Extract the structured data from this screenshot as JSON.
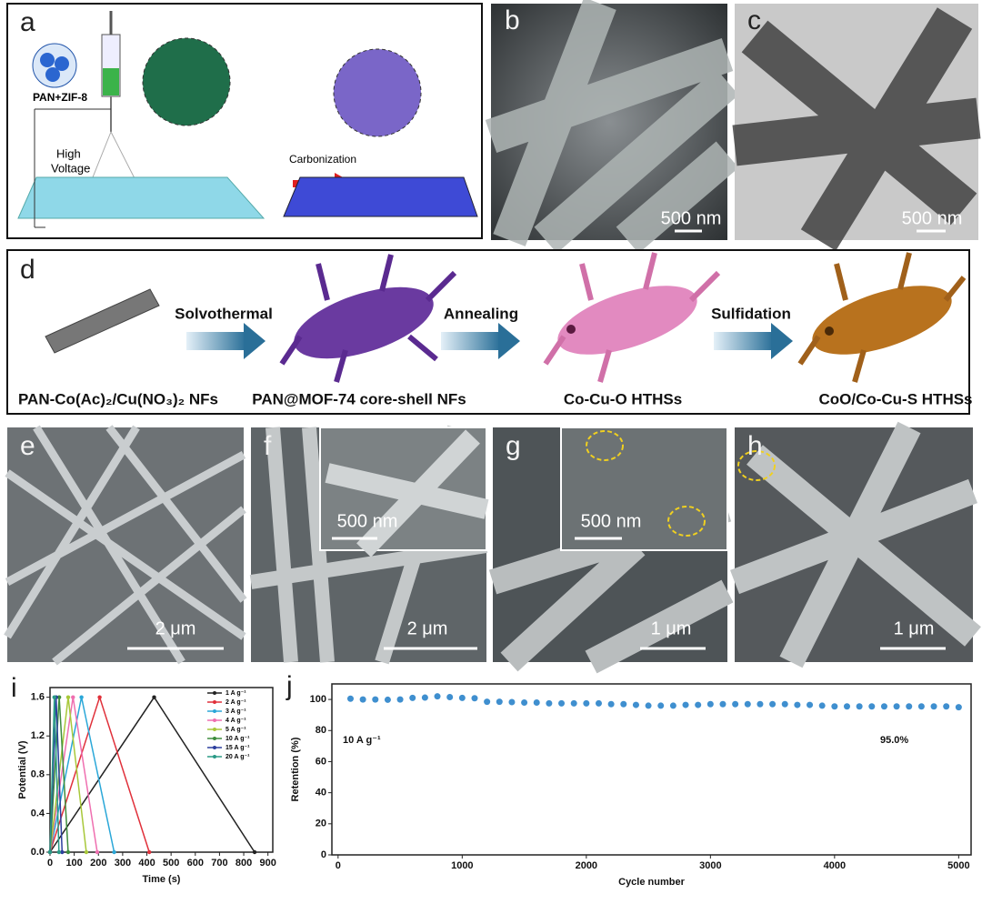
{
  "panels": {
    "a": {
      "label": "a",
      "sample": "PAN+ZIF-8",
      "voltage_lines": [
        "High",
        "Voltage"
      ],
      "step": "Carbonization"
    },
    "b": {
      "label": "b",
      "scale_bar": "500 nm"
    },
    "c": {
      "label": "c",
      "scale_bar": "500 nm"
    },
    "d": {
      "label": "d",
      "steps": [
        "Solvothermal",
        "Annealing",
        "Sulfidation"
      ],
      "products": [
        "PAN-Co(Ac)₂/Cu(NO₃)₂ NFs",
        "PAN@MOF-74 core-shell NFs",
        "Co-Cu-O HTHSs",
        "CoO/Co-Cu-S HTHSs"
      ]
    },
    "e": {
      "label": "e",
      "scale_bar": "2 μm"
    },
    "f": {
      "label": "f",
      "inset_scale_bar": "500 nm",
      "scale_bar": "2 μm"
    },
    "g": {
      "label": "g",
      "inset_scale_bar": "500 nm",
      "scale_bar": "1 μm"
    },
    "h": {
      "label": "h",
      "scale_bar": "1 μm"
    }
  },
  "chart_data": [
    {
      "type": "line",
      "label": "i",
      "x_label": "Time (s)",
      "y_label": "Potential (V)",
      "xlim": [
        0,
        920
      ],
      "xticks": [
        0,
        100,
        200,
        300,
        400,
        500,
        600,
        700,
        800,
        900
      ],
      "ylim": [
        0,
        1.7
      ],
      "yticks": [
        {
          "value": 0,
          "label": "0.0"
        },
        0.4,
        0.8,
        1.2,
        1.6
      ],
      "legend": "upper right",
      "series": [
        {
          "name": "1 A g⁻¹",
          "color": "#222222",
          "x": [
            0,
            430,
            845
          ],
          "values": [
            0,
            1.6,
            0
          ]
        },
        {
          "name": "2 A g⁻¹",
          "color": "#e0303a",
          "x": [
            0,
            205,
            410
          ],
          "values": [
            0,
            1.6,
            0
          ]
        },
        {
          "name": "3 A g⁻¹",
          "color": "#2aa7d8",
          "x": [
            0,
            130,
            265
          ],
          "values": [
            0,
            1.6,
            0
          ]
        },
        {
          "name": "4 A g⁻¹",
          "color": "#ef6fb0",
          "x": [
            0,
            95,
            195
          ],
          "values": [
            0,
            1.6,
            0
          ]
        },
        {
          "name": "5 A g⁻¹",
          "color": "#a8c83a",
          "x": [
            0,
            75,
            150
          ],
          "values": [
            0,
            1.6,
            0
          ]
        },
        {
          "name": "10 A g⁻¹",
          "color": "#3d8c3d",
          "x": [
            0,
            38,
            75
          ],
          "values": [
            0,
            1.6,
            0
          ]
        },
        {
          "name": "15 A g⁻¹",
          "color": "#2c3f9e",
          "x": [
            0,
            25,
            50
          ],
          "values": [
            0,
            1.6,
            0
          ]
        },
        {
          "name": "20 A g⁻¹",
          "color": "#2a9a86",
          "x": [
            0,
            18,
            37
          ],
          "values": [
            0,
            1.6,
            0
          ]
        }
      ]
    },
    {
      "type": "scatter",
      "label": "j",
      "x_label": "Cycle number",
      "y_label": "Retention (%)",
      "xlim": [
        -50,
        5100
      ],
      "xticks": [
        0,
        1000,
        2000,
        3000,
        4000,
        5000
      ],
      "ylim": [
        0,
        110
      ],
      "yticks": [
        0,
        20,
        40,
        60,
        80,
        100
      ],
      "annotations": [
        "10 A g⁻¹",
        "95.0%"
      ],
      "color": "#3f8fcf",
      "x": [
        100,
        200,
        300,
        400,
        500,
        600,
        700,
        800,
        900,
        1000,
        1100,
        1200,
        1300,
        1400,
        1500,
        1600,
        1700,
        1800,
        1900,
        2000,
        2100,
        2200,
        2300,
        2400,
        2500,
        2600,
        2700,
        2800,
        2900,
        3000,
        3100,
        3200,
        3300,
        3400,
        3500,
        3600,
        3700,
        3800,
        3900,
        4000,
        4100,
        4200,
        4300,
        4400,
        4500,
        4600,
        4700,
        4800,
        4900,
        5000
      ],
      "values": [
        100.5,
        100,
        100,
        99.8,
        100,
        101,
        101.2,
        102,
        101.5,
        101,
        100.8,
        98.5,
        98.5,
        98.3,
        98,
        98,
        97.5,
        97.5,
        97.5,
        97.5,
        97.5,
        97,
        97,
        96.5,
        96,
        96,
        96,
        96.5,
        96.5,
        97,
        97,
        97,
        97,
        97,
        97,
        97,
        96.5,
        96.5,
        96,
        95.5,
        95.5,
        95.5,
        95.5,
        95.5,
        95.5,
        95.5,
        95.5,
        95.5,
        95.5,
        95
      ]
    }
  ]
}
